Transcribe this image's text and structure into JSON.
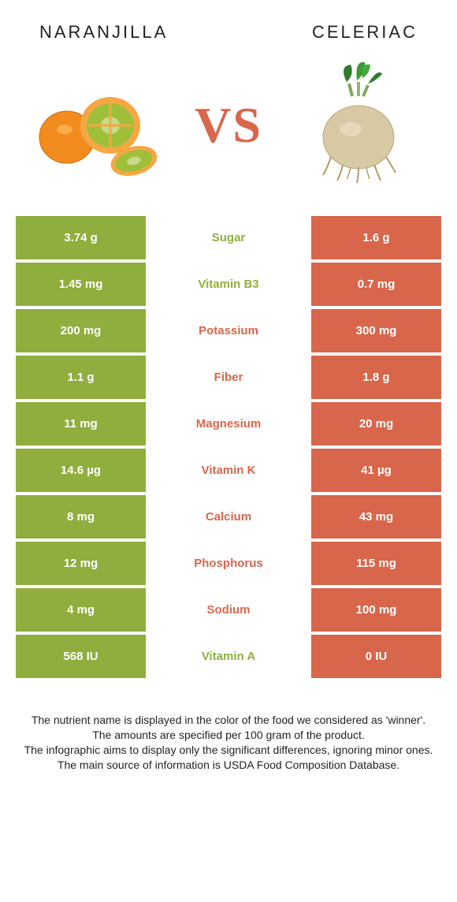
{
  "header": {
    "left": "NARANJILLA",
    "right": "CELERIAC"
  },
  "vs": "VS",
  "colors": {
    "left": "#8fae3e",
    "right": "#d8664b",
    "naranjilla_skin": "#f28c1e",
    "naranjilla_flesh": "#9fbf3a",
    "celeriac_root": "#d7c9a3",
    "celeriac_leaf": "#2e7d2a"
  },
  "rows": [
    {
      "left": "3.74 g",
      "label": "Sugar",
      "right": "1.6 g",
      "winner": "left"
    },
    {
      "left": "1.45 mg",
      "label": "Vitamin B3",
      "right": "0.7 mg",
      "winner": "left"
    },
    {
      "left": "200 mg",
      "label": "Potassium",
      "right": "300 mg",
      "winner": "right"
    },
    {
      "left": "1.1 g",
      "label": "Fiber",
      "right": "1.8 g",
      "winner": "right"
    },
    {
      "left": "11 mg",
      "label": "Magnesium",
      "right": "20 mg",
      "winner": "right"
    },
    {
      "left": "14.6 µg",
      "label": "Vitamin K",
      "right": "41 µg",
      "winner": "right"
    },
    {
      "left": "8 mg",
      "label": "Calcium",
      "right": "43 mg",
      "winner": "right"
    },
    {
      "left": "12 mg",
      "label": "Phosphorus",
      "right": "115 mg",
      "winner": "right"
    },
    {
      "left": "4 mg",
      "label": "Sodium",
      "right": "100 mg",
      "winner": "right"
    },
    {
      "left": "568 IU",
      "label": "Vitamin A",
      "right": "0 IU",
      "winner": "left"
    }
  ],
  "footer": {
    "l1": "The nutrient name is displayed in the color of the food we considered as 'winner'.",
    "l2": "The amounts are specified per 100 gram of the product.",
    "l3": "The infographic aims to display only the significant differences, ignoring minor ones.",
    "l4": "The main source of information is USDA Food Composition Database."
  }
}
